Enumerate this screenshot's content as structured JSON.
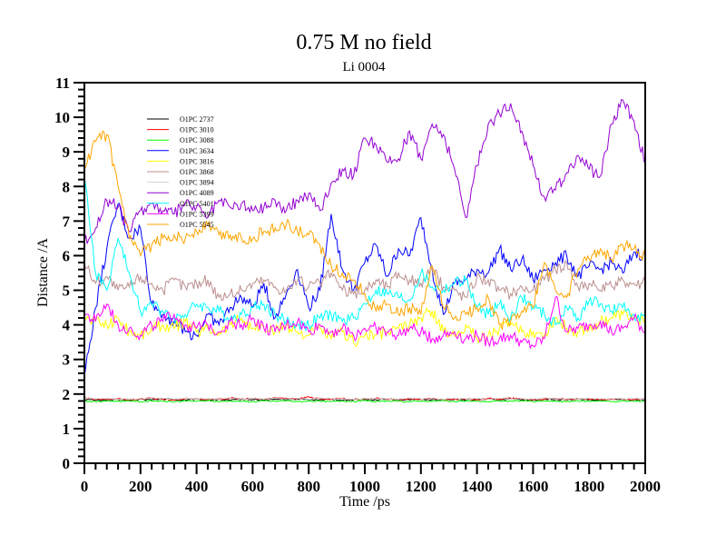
{
  "chart_data": {
    "type": "line",
    "title": "0.75 M no field",
    "subtitle": "Li 0004",
    "xlabel": "Time /ps",
    "ylabel": "Distance /A",
    "xlim": [
      0,
      2000
    ],
    "ylim": [
      0,
      11
    ],
    "xticks": [
      0,
      200,
      400,
      600,
      800,
      1000,
      1200,
      1400,
      1600,
      1800,
      2000
    ],
    "yticks": [
      0,
      1,
      2,
      3,
      4,
      5,
      6,
      7,
      8,
      9,
      10,
      11
    ],
    "x_minor_step": 40,
    "y_minor_step": 0.2,
    "grid": false,
    "legend_position": "top-left",
    "x": [
      0,
      40,
      80,
      120,
      160,
      200,
      240,
      280,
      320,
      360,
      400,
      440,
      480,
      520,
      560,
      600,
      640,
      680,
      720,
      760,
      800,
      840,
      880,
      920,
      960,
      1000,
      1040,
      1080,
      1120,
      1160,
      1200,
      1240,
      1280,
      1320,
      1360,
      1400,
      1440,
      1480,
      1520,
      1560,
      1600,
      1640,
      1680,
      1720,
      1760,
      1800,
      1840,
      1880,
      1920,
      1960,
      2000
    ],
    "series": [
      {
        "name": "O1PC 2737",
        "color": "#000000",
        "values": [
          1.85,
          1.82,
          1.83,
          1.84,
          1.82,
          1.85,
          1.83,
          1.86,
          1.84,
          1.82,
          1.85,
          1.83,
          1.84,
          1.82,
          1.85,
          1.84,
          1.83,
          1.85,
          1.84,
          1.86,
          1.83,
          1.84,
          1.85,
          1.82,
          1.84,
          1.85,
          1.83,
          1.86,
          1.84,
          1.83,
          1.85,
          1.84,
          1.82,
          1.85,
          1.83,
          1.84,
          1.85,
          1.83,
          1.86,
          1.84,
          1.83,
          1.85,
          1.84,
          1.83,
          1.85,
          1.84,
          1.82,
          1.85,
          1.84,
          1.83,
          1.85
        ]
      },
      {
        "name": "O1PC 3010",
        "color": "#ff0000",
        "values": [
          1.88,
          1.85,
          1.84,
          1.87,
          1.82,
          1.86,
          1.88,
          1.85,
          1.83,
          1.87,
          1.86,
          1.84,
          1.85,
          1.88,
          1.86,
          1.87,
          1.85,
          1.89,
          1.88,
          1.87,
          1.92,
          1.86,
          1.85,
          1.87,
          1.84,
          1.86,
          1.88,
          1.85,
          1.84,
          1.86,
          1.85,
          1.87,
          1.84,
          1.86,
          1.85,
          1.84,
          1.87,
          1.85,
          1.88,
          1.86,
          1.84,
          1.85,
          1.87,
          1.84,
          1.86,
          1.85,
          1.84,
          1.86,
          1.85,
          1.84,
          1.86
        ]
      },
      {
        "name": "O1PC 3088",
        "color": "#00ff00",
        "values": [
          1.8,
          1.78,
          1.8,
          1.79,
          1.81,
          1.78,
          1.8,
          1.79,
          1.78,
          1.8,
          1.79,
          1.81,
          1.78,
          1.8,
          1.79,
          1.78,
          1.8,
          1.79,
          1.81,
          1.78,
          1.8,
          1.79,
          1.78,
          1.8,
          1.79,
          1.81,
          1.78,
          1.8,
          1.79,
          1.78,
          1.8,
          1.79,
          1.81,
          1.78,
          1.8,
          1.79,
          1.78,
          1.8,
          1.79,
          1.81,
          1.78,
          1.8,
          1.79,
          1.78,
          1.8,
          1.79,
          1.81,
          1.78,
          1.8,
          1.79,
          1.8
        ]
      },
      {
        "name": "O1PC 3634",
        "color": "#0000ff",
        "values": [
          2.5,
          4.5,
          6.2,
          7.5,
          6.5,
          6.8,
          4.6,
          4.3,
          4.1,
          3.8,
          3.7,
          4.3,
          4.0,
          4.5,
          4.8,
          4.5,
          5.2,
          4.2,
          4.9,
          5.6,
          4.5,
          5.0,
          7.2,
          5.6,
          5.0,
          5.8,
          6.3,
          5.4,
          6.2,
          6.0,
          7.1,
          5.6,
          4.3,
          5.2,
          5.3,
          5.6,
          5.5,
          6.2,
          5.6,
          5.9,
          5.3,
          5.6,
          5.8,
          6.0,
          5.4,
          5.7,
          5.6,
          5.8,
          5.5,
          6.1,
          6.0
        ]
      },
      {
        "name": "O1PC 3816",
        "color": "#ffff00",
        "values": [
          4.2,
          4.1,
          4.0,
          4.2,
          3.8,
          3.7,
          3.9,
          4.0,
          3.9,
          4.1,
          3.8,
          3.9,
          3.8,
          4.0,
          4.2,
          3.9,
          3.9,
          3.8,
          4.0,
          3.8,
          3.7,
          3.9,
          3.6,
          3.8,
          3.5,
          3.7,
          3.7,
          3.8,
          3.9,
          4.0,
          4.2,
          4.4,
          3.8,
          3.7,
          4.0,
          3.6,
          3.7,
          3.9,
          4.0,
          3.8,
          3.8,
          3.7,
          4.2,
          3.9,
          3.8,
          3.9,
          4.1,
          4.2,
          4.3,
          4.2,
          4.1
        ]
      },
      {
        "name": "O1PC 3868",
        "color": "#bc8f8f",
        "values": [
          5.8,
          5.2,
          5.4,
          5.0,
          5.1,
          5.4,
          5.2,
          5.0,
          5.3,
          5.1,
          5.2,
          5.3,
          4.8,
          4.9,
          5.0,
          5.2,
          5.3,
          5.1,
          5.0,
          5.3,
          5.1,
          5.2,
          5.5,
          5.0,
          4.9,
          5.0,
          5.3,
          5.1,
          5.5,
          5.3,
          5.2,
          5.6,
          5.1,
          5.0,
          4.8,
          5.4,
          5.3,
          5.0,
          4.9,
          5.1,
          5.0,
          5.3,
          5.6,
          5.8,
          5.1,
          5.2,
          5.0,
          5.1,
          5.3,
          5.2,
          5.2
        ]
      },
      {
        "name": "O1PC 3894",
        "color": "#d3d3d3",
        "values": [
          1.9,
          1.86,
          1.88,
          1.85,
          1.87,
          1.86,
          1.88,
          1.87,
          1.85,
          1.88,
          1.86,
          1.87,
          1.85,
          1.88,
          1.86,
          1.87,
          1.85,
          1.88,
          1.86,
          1.87,
          1.85,
          1.88,
          1.86,
          1.87,
          1.85,
          1.88,
          1.86,
          1.87,
          1.85,
          1.88,
          1.86,
          1.87,
          1.85,
          1.88,
          1.86,
          1.87,
          1.85,
          1.88,
          1.86,
          1.87,
          1.85,
          1.88,
          1.86,
          1.87,
          1.85,
          1.88,
          1.86,
          1.87,
          1.85,
          1.88,
          1.86
        ]
      },
      {
        "name": "O1PC 4089",
        "color": "#9400d3",
        "values": [
          6.4,
          6.8,
          7.6,
          7.4,
          6.7,
          7.3,
          7.5,
          7.3,
          7.2,
          7.5,
          7.4,
          7.1,
          7.6,
          7.4,
          7.5,
          7.3,
          7.4,
          7.6,
          7.3,
          7.6,
          7.8,
          7.3,
          8.1,
          8.5,
          8.3,
          9.4,
          9.2,
          8.7,
          8.8,
          9.6,
          8.8,
          9.8,
          9.5,
          8.5,
          7.1,
          8.6,
          9.8,
          10.1,
          10.4,
          9.6,
          8.6,
          7.7,
          7.9,
          8.4,
          8.9,
          8.5,
          8.3,
          9.8,
          10.5,
          9.9,
          8.7
        ]
      },
      {
        "name": "O1PC 5401",
        "color": "#00ffff",
        "values": [
          8.3,
          5.5,
          5.0,
          6.5,
          5.5,
          4.4,
          4.6,
          4.4,
          4.2,
          4.3,
          4.6,
          4.5,
          4.4,
          4.2,
          4.3,
          4.5,
          4.6,
          4.3,
          4.1,
          4.0,
          4.0,
          4.2,
          4.3,
          4.1,
          4.2,
          4.6,
          5.0,
          4.9,
          4.8,
          4.7,
          5.5,
          5.1,
          5.0,
          5.2,
          5.3,
          4.5,
          4.3,
          4.6,
          4.2,
          4.8,
          4.5,
          4.3,
          4.0,
          4.5,
          4.2,
          4.7,
          4.6,
          4.4,
          4.5,
          4.3,
          4.2
        ]
      },
      {
        "name": "O1PC 5399",
        "color": "#ff00ff",
        "values": [
          4.3,
          4.1,
          4.6,
          4.0,
          3.9,
          3.7,
          4.0,
          4.1,
          4.3,
          4.0,
          3.9,
          4.0,
          3.8,
          4.1,
          4.0,
          4.2,
          3.9,
          3.8,
          4.0,
          4.1,
          3.8,
          4.0,
          3.8,
          3.9,
          3.7,
          3.9,
          3.9,
          3.8,
          3.7,
          3.9,
          3.8,
          3.6,
          3.7,
          3.8,
          3.6,
          3.7,
          3.5,
          3.6,
          3.7,
          3.5,
          3.4,
          3.6,
          4.8,
          3.8,
          3.9,
          4.0,
          4.1,
          3.8,
          3.9,
          4.2,
          3.8
        ]
      },
      {
        "name": "O1PC 5545",
        "color": "#ffa500",
        "values": [
          8.5,
          9.3,
          9.5,
          8.0,
          6.5,
          6.0,
          6.3,
          6.5,
          6.6,
          6.5,
          6.7,
          6.9,
          6.6,
          6.6,
          6.5,
          6.5,
          6.7,
          6.8,
          6.9,
          6.7,
          6.6,
          6.3,
          5.7,
          5.5,
          5.3,
          4.9,
          4.4,
          4.6,
          4.3,
          4.5,
          4.3,
          5.7,
          4.5,
          4.2,
          4.3,
          4.5,
          4.8,
          4.0,
          4.1,
          4.4,
          4.5,
          5.8,
          5.0,
          4.8,
          5.6,
          5.9,
          6.2,
          5.9,
          6.3,
          6.2,
          6.0
        ]
      }
    ]
  }
}
